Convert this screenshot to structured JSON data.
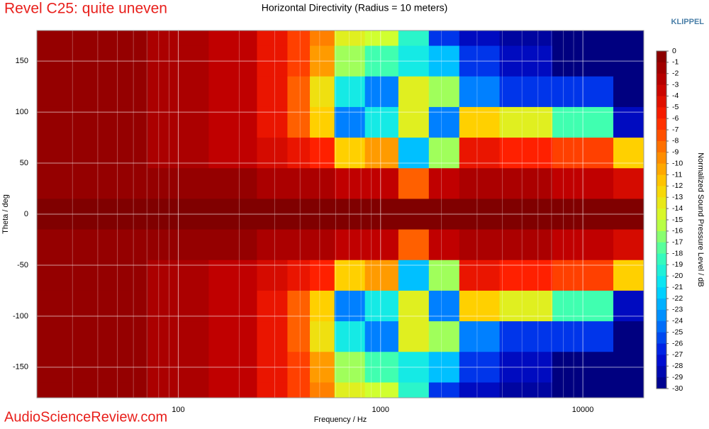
{
  "chart_data": {
    "type": "contour",
    "title": "Horizontal Directivity (Radius = 10 meters)",
    "annotation": "Revel C25: quite uneven",
    "brand": "KLIPPEL",
    "watermark": "AudioScienceReview.com",
    "xlabel": "Frequency / Hz",
    "ylabel": "Theta / deg",
    "colorbar_label": "Normalized Sound Pressure Level / dB",
    "xscale": "log",
    "xlim": [
      20,
      20000
    ],
    "xticks": [
      100,
      1000,
      10000
    ],
    "x_minor_grid": true,
    "ylim": [
      -180,
      180
    ],
    "yticks": [
      150,
      100,
      50,
      0,
      -50,
      -100,
      -150
    ],
    "grid": true,
    "x": [
      20,
      50,
      100,
      200,
      300,
      400,
      500,
      700,
      1000,
      1500,
      2000,
      3000,
      5000,
      10000,
      20000
    ],
    "y": [
      180,
      150,
      120,
      90,
      60,
      30,
      0,
      -30,
      -60,
      -90,
      -120,
      -150,
      -180
    ],
    "z": [
      [
        -1,
        -1,
        -2,
        -3,
        -5,
        -7,
        -9,
        -14,
        -15,
        -19,
        -26,
        -28,
        -29,
        -30,
        -30
      ],
      [
        -1,
        -1,
        -2,
        -3,
        -5,
        -7,
        -10,
        -16,
        -18,
        -20,
        -22,
        -26,
        -28,
        -30,
        -30
      ],
      [
        -1,
        -1,
        -2,
        -3,
        -5,
        -8,
        -13,
        -20,
        -24,
        -14,
        -16,
        -24,
        -26,
        -26,
        -30
      ],
      [
        -1,
        -1,
        -2,
        -3,
        -5,
        -8,
        -12,
        -24,
        -20,
        -14,
        -24,
        -12,
        -14,
        -18,
        -28
      ],
      [
        -1,
        -1,
        -2,
        -3,
        -4,
        -5,
        -6,
        -12,
        -10,
        -22,
        -16,
        -5,
        -6,
        -7,
        -12
      ],
      [
        -1,
        -1,
        -1,
        -1,
        -2,
        -2,
        -2,
        -3,
        -3,
        -8,
        -3,
        -2,
        -2,
        -3,
        -4
      ],
      [
        0,
        0,
        0,
        0,
        0,
        0,
        0,
        0,
        0,
        0,
        0,
        0,
        0,
        0,
        0
      ],
      [
        -1,
        -1,
        -1,
        -1,
        -2,
        -2,
        -2,
        -3,
        -3,
        -8,
        -3,
        -2,
        -2,
        -3,
        -4
      ],
      [
        -1,
        -1,
        -2,
        -3,
        -4,
        -5,
        -6,
        -12,
        -10,
        -22,
        -16,
        -5,
        -6,
        -7,
        -12
      ],
      [
        -1,
        -1,
        -2,
        -3,
        -5,
        -8,
        -12,
        -24,
        -20,
        -14,
        -24,
        -12,
        -14,
        -18,
        -28
      ],
      [
        -1,
        -1,
        -2,
        -3,
        -5,
        -8,
        -13,
        -20,
        -24,
        -14,
        -16,
        -24,
        -26,
        -26,
        -30
      ],
      [
        -1,
        -1,
        -2,
        -3,
        -5,
        -7,
        -10,
        -16,
        -18,
        -20,
        -22,
        -26,
        -28,
        -30,
        -30
      ],
      [
        -1,
        -1,
        -2,
        -3,
        -5,
        -7,
        -9,
        -14,
        -15,
        -19,
        -26,
        -28,
        -29,
        -30,
        -30
      ]
    ],
    "colorbar_lim": [
      -30,
      0
    ],
    "colorbar_ticks": [
      0,
      -1,
      -2,
      -3,
      -4,
      -5,
      -6,
      -7,
      -8,
      -9,
      -10,
      -11,
      -12,
      -13,
      -14,
      -15,
      -16,
      -17,
      -18,
      -19,
      -20,
      -21,
      -22,
      -23,
      -24,
      -25,
      -26,
      -27,
      -28,
      -29,
      -30
    ],
    "colors": [
      "#800000",
      "#c00000",
      "#ff2000",
      "#ff8000",
      "#ffd000",
      "#d0ff30",
      "#40ffb0",
      "#00e0ff",
      "#0080ff",
      "#0010e0",
      "#000080"
    ]
  }
}
